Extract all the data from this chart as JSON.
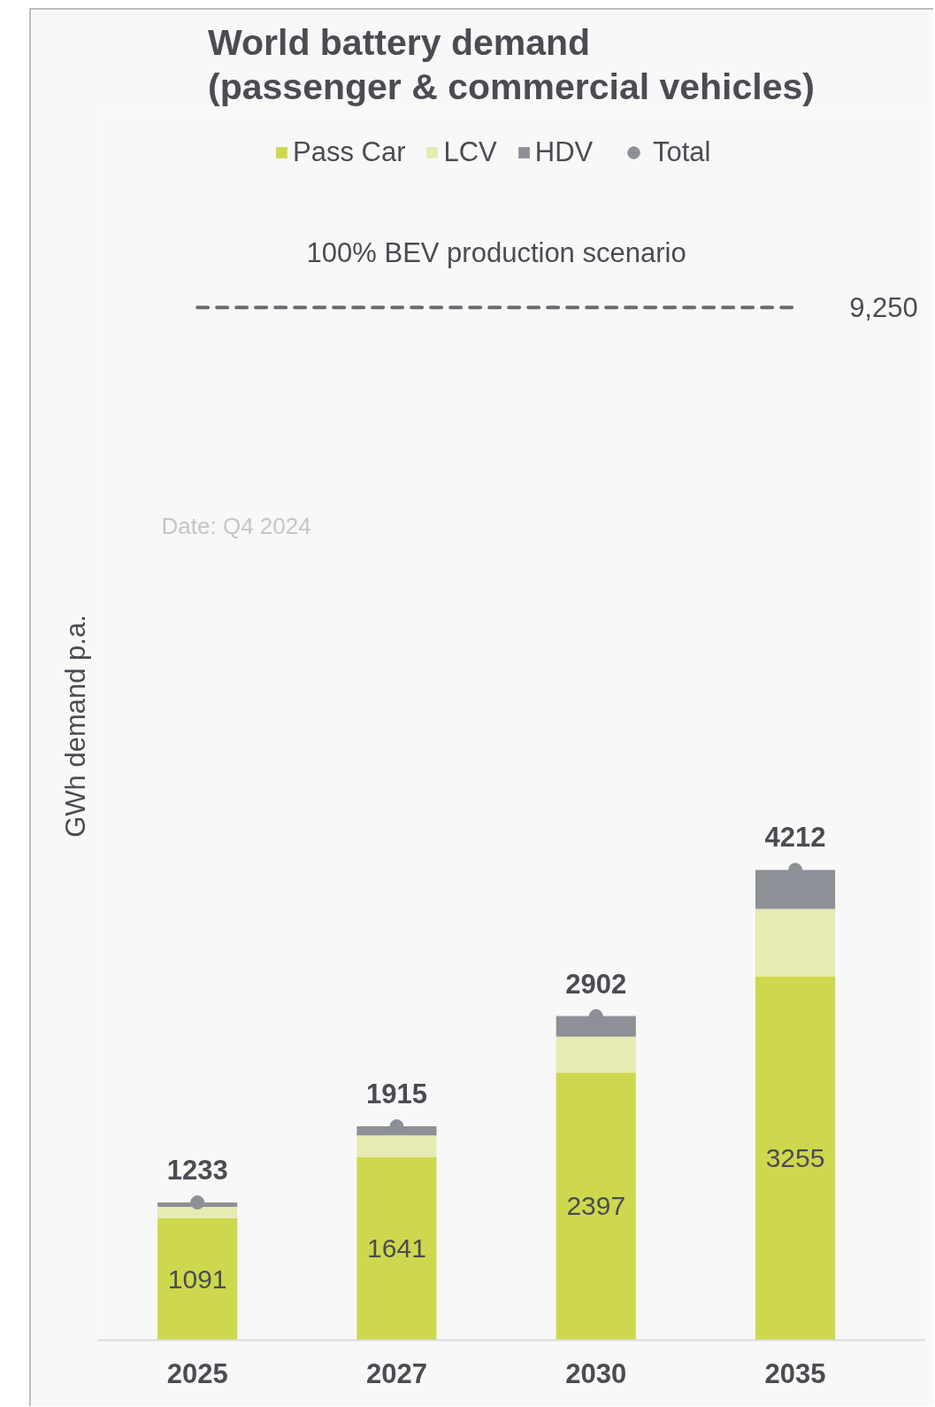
{
  "chart_data": {
    "type": "bar",
    "stacked": true,
    "title": "World battery demand\n(passenger & commercial vehicles)",
    "ylabel": "GWh demand p.a.",
    "categories": [
      "2025",
      "2027",
      "2030",
      "2035"
    ],
    "series": [
      {
        "name": "Pass Car",
        "color": "#cdd84e",
        "values": [
          1091,
          1641,
          2397,
          3255
        ],
        "value_labels": [
          "1091",
          "1641",
          "2397",
          "3255"
        ]
      },
      {
        "name": "LCV",
        "color": "#e6ebb2",
        "values": [
          102,
          193,
          321,
          607
        ]
      },
      {
        "name": "HDV",
        "color": "#8d9097",
        "values": [
          40,
          81,
          184,
          350
        ]
      },
      {
        "name": "Total",
        "type": "scatter",
        "color": "#8d9097",
        "values": [
          1233,
          1915,
          2902,
          4212
        ],
        "value_labels": [
          "1233",
          "1915",
          "2902",
          "4212"
        ]
      }
    ],
    "marker": "circle",
    "ylim": [
      0,
      11000
    ],
    "tick_labels": "x",
    "legend": "top",
    "grid": false,
    "ref_lines": [
      {
        "axis": "y",
        "value": 9250,
        "label": "100% BEV production scenario",
        "color": "#6a6b71",
        "line_style": "dashed"
      }
    ],
    "annotations": [
      "9,250",
      "Date: Q4 2024"
    ]
  }
}
